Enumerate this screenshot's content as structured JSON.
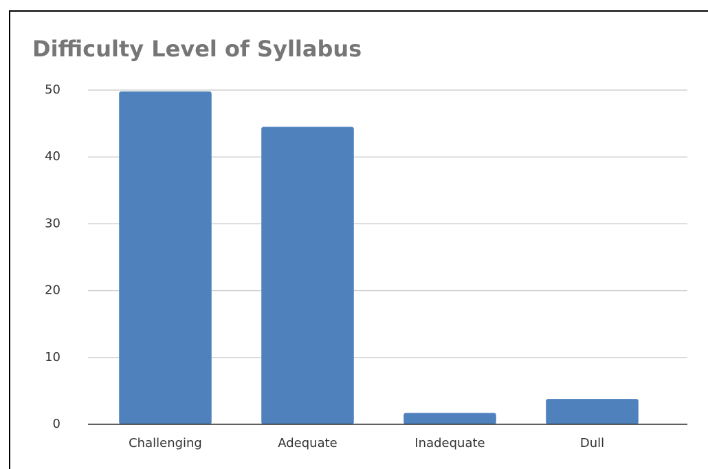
{
  "chart_data": {
    "type": "bar",
    "title": "Difficulty Level of Syllabus",
    "categories": [
      "Challenging",
      "Adequate",
      "Inadequate",
      "Dull"
    ],
    "values": [
      49.8,
      44.5,
      1.7,
      3.8
    ],
    "color": "#4f81bd",
    "ylim": [
      0,
      50
    ],
    "yticks": [
      0,
      10,
      20,
      30,
      40,
      50
    ],
    "grid": true
  }
}
